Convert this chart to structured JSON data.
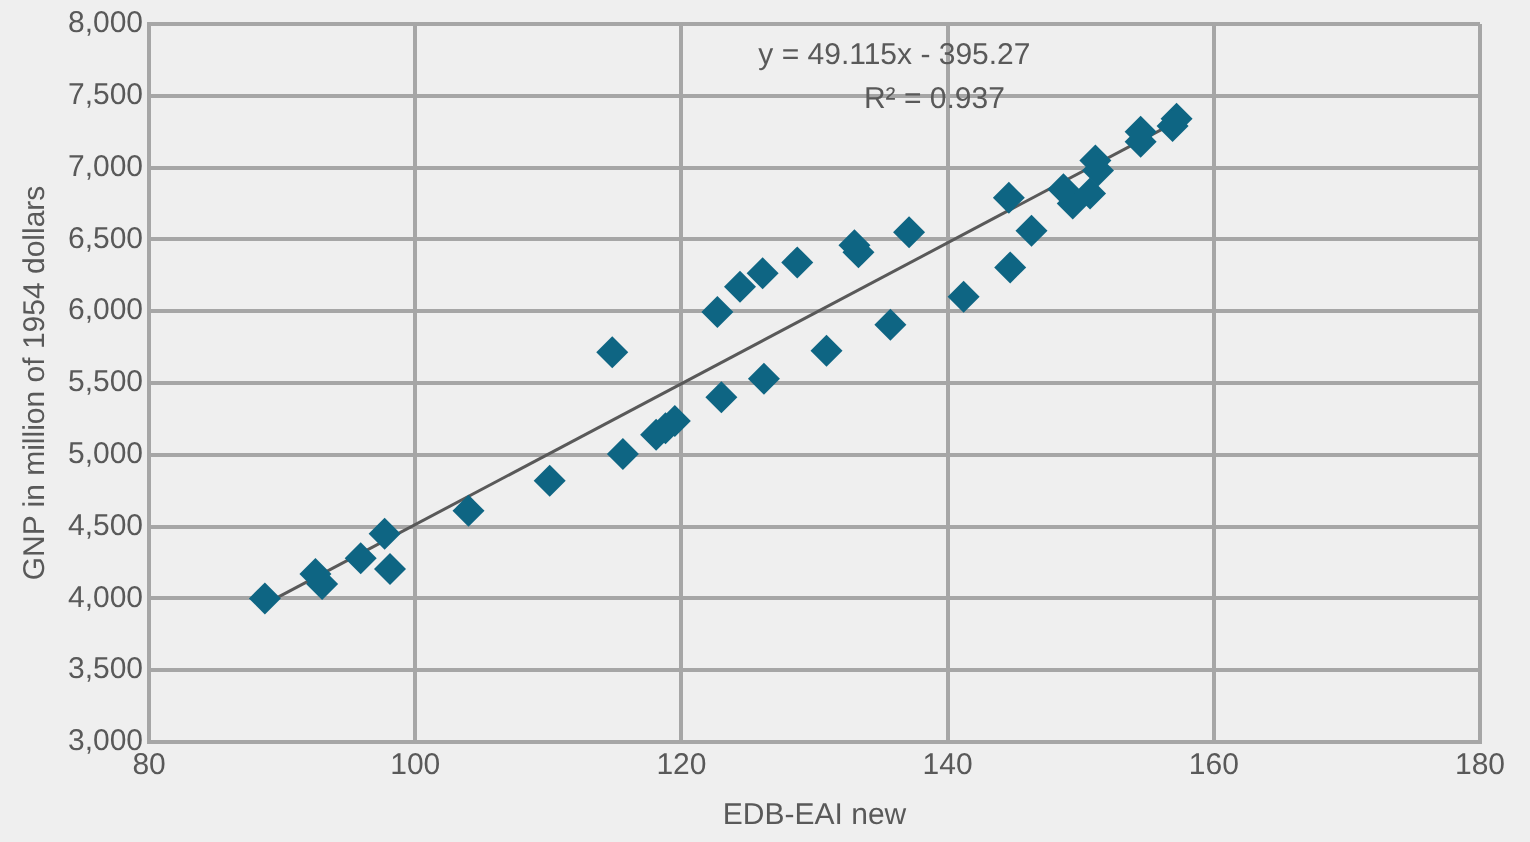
{
  "chart_data": {
    "type": "scatter",
    "xlabel": "EDB-EAI new",
    "ylabel": "GNP in million of 1954 dollars",
    "xlim": [
      80,
      180
    ],
    "xticks": [
      80,
      100,
      120,
      140,
      160,
      180
    ],
    "ylim": [
      3000,
      8000
    ],
    "yticks": [
      {
        "value": 3000,
        "label": "3,000"
      },
      {
        "value": 3500,
        "label": "3,500"
      },
      {
        "value": 4000,
        "label": "4,000"
      },
      {
        "value": 4500,
        "label": "4,500"
      },
      {
        "value": 5000,
        "label": "5,000"
      },
      {
        "value": 5500,
        "label": "5,500"
      },
      {
        "value": 6000,
        "label": "6,000"
      },
      {
        "value": 6500,
        "label": "6,500"
      },
      {
        "value": 7000,
        "label": "7,000"
      },
      {
        "value": 7500,
        "label": "7,500"
      },
      {
        "value": 8000,
        "label": "8,000"
      }
    ],
    "grid": true,
    "legend": false,
    "marker": "diamond",
    "annotations": [
      "y = 49.115x - 395.27",
      "R² = 0.937"
    ],
    "series": [
      {
        "type": "scatter",
        "color": "#0e6583",
        "x": [
          88.7,
          92.5,
          93.0,
          95.9,
          97.7,
          98.1,
          104.0,
          110.1,
          114.8,
          115.6,
          118.1,
          118.8,
          119.5,
          123.0,
          126.2,
          122.7,
          124.4,
          126.1,
          128.7,
          133.0,
          133.3,
          137.1,
          130.9,
          135.7,
          141.2,
          144.7,
          146.3,
          144.6,
          148.7,
          149.4,
          150.7,
          151.1,
          151.3,
          154.5,
          154.5,
          157.2,
          156.9
        ],
        "values": [
          4000,
          4170,
          4100,
          4280,
          4450,
          4205,
          4610,
          4820,
          5715,
          5005,
          5140,
          5185,
          5235,
          5400,
          5530,
          5995,
          6170,
          6265,
          6340,
          6460,
          6410,
          6550,
          5725,
          5905,
          6100,
          6305,
          6560,
          6790,
          6850,
          6750,
          6820,
          7050,
          6980,
          7250,
          7180,
          7340,
          7290
        ]
      },
      {
        "type": "line",
        "color": "#595959",
        "marker": "none",
        "x": [
          88.7,
          157.2
        ],
        "values": [
          3960,
          7320
        ]
      }
    ]
  }
}
